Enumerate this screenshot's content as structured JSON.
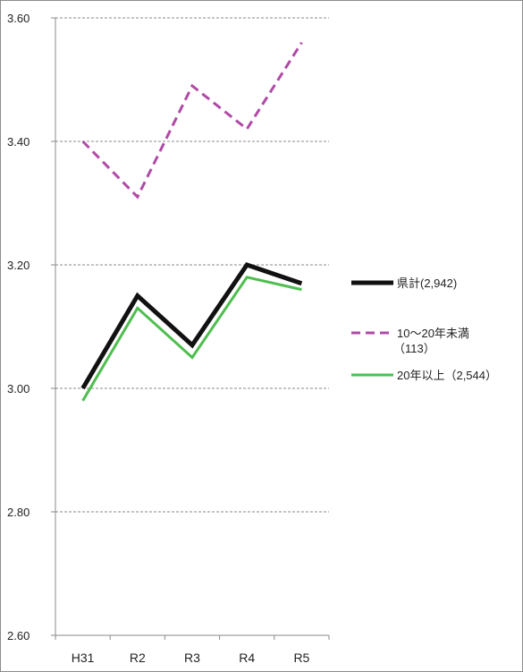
{
  "chart_data": {
    "type": "line",
    "title": "",
    "xlabel": "",
    "ylabel": "",
    "categories": [
      "H31",
      "R2",
      "R3",
      "R4",
      "R5"
    ],
    "ylim": [
      2.6,
      3.6
    ],
    "yticks": [
      "2.60",
      "2.80",
      "3.00",
      "3.20",
      "3.40",
      "3.60"
    ],
    "grid": "horizontal dashed",
    "legend_position": "right",
    "series": [
      {
        "name": "県計(2,942)",
        "values": [
          3.0,
          3.15,
          3.07,
          3.2,
          3.17
        ],
        "color": "#111111",
        "dash": "solid",
        "width": 5
      },
      {
        "name": "10～20年未満",
        "name_line2": "（113）",
        "values": [
          3.4,
          3.31,
          3.49,
          3.42,
          3.56
        ],
        "color": "#b04aa6",
        "dash": "dashed",
        "width": 3
      },
      {
        "name": "20年以上（2,544）",
        "values": [
          2.98,
          3.13,
          3.05,
          3.18,
          3.16
        ],
        "color": "#4fbe4f",
        "dash": "solid",
        "width": 3
      }
    ]
  }
}
